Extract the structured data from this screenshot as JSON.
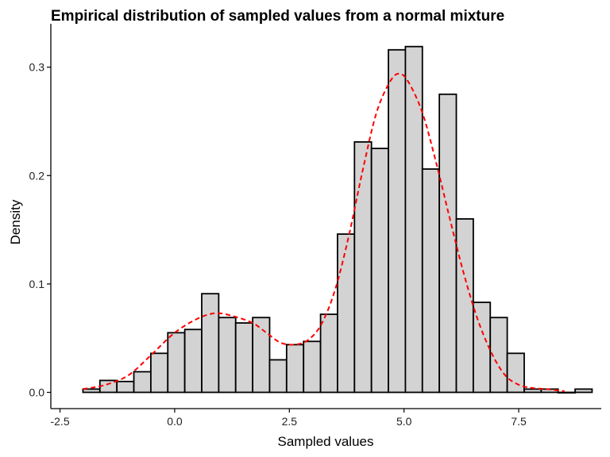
{
  "chart_data": {
    "type": "bar",
    "title": "Empirical distribution of sampled values from a normal mixture",
    "xlabel": "Sampled values",
    "ylabel": "Density",
    "xlim": [
      -2.7,
      9.3
    ],
    "ylim": [
      -0.015,
      0.34
    ],
    "x_ticks": [
      {
        "value": -2.5,
        "label": "-2.5"
      },
      {
        "value": 0.0,
        "label": "0.0"
      },
      {
        "value": 2.5,
        "label": "2.5"
      },
      {
        "value": 5.0,
        "label": "5.0"
      },
      {
        "value": 7.5,
        "label": "7.5"
      }
    ],
    "y_ticks": [
      {
        "value": 0.0,
        "label": "0.0"
      },
      {
        "value": 0.1,
        "label": "0.1"
      },
      {
        "value": 0.2,
        "label": "0.2"
      },
      {
        "value": 0.3,
        "label": "0.3"
      }
    ],
    "bins": [
      {
        "x0": -2.0,
        "x1": -1.63,
        "density": 0.003
      },
      {
        "x0": -1.63,
        "x1": -1.26,
        "density": 0.011
      },
      {
        "x0": -1.26,
        "x1": -0.89,
        "density": 0.01
      },
      {
        "x0": -0.89,
        "x1": -0.52,
        "density": 0.019
      },
      {
        "x0": -0.52,
        "x1": -0.15,
        "density": 0.036
      },
      {
        "x0": -0.15,
        "x1": 0.22,
        "density": 0.055
      },
      {
        "x0": 0.22,
        "x1": 0.59,
        "density": 0.058
      },
      {
        "x0": 0.59,
        "x1": 0.96,
        "density": 0.091
      },
      {
        "x0": 0.96,
        "x1": 1.33,
        "density": 0.069
      },
      {
        "x0": 1.33,
        "x1": 1.7,
        "density": 0.064
      },
      {
        "x0": 1.7,
        "x1": 2.07,
        "density": 0.069
      },
      {
        "x0": 2.07,
        "x1": 2.44,
        "density": 0.03
      },
      {
        "x0": 2.44,
        "x1": 2.81,
        "density": 0.044
      },
      {
        "x0": 2.81,
        "x1": 3.18,
        "density": 0.047
      },
      {
        "x0": 3.18,
        "x1": 3.55,
        "density": 0.072
      },
      {
        "x0": 3.55,
        "x1": 3.92,
        "density": 0.146
      },
      {
        "x0": 3.92,
        "x1": 4.29,
        "density": 0.231
      },
      {
        "x0": 4.29,
        "x1": 4.66,
        "density": 0.225
      },
      {
        "x0": 4.66,
        "x1": 5.03,
        "density": 0.316
      },
      {
        "x0": 5.03,
        "x1": 5.4,
        "density": 0.319
      },
      {
        "x0": 5.4,
        "x1": 5.77,
        "density": 0.206
      },
      {
        "x0": 5.77,
        "x1": 6.14,
        "density": 0.275
      },
      {
        "x0": 6.14,
        "x1": 6.51,
        "density": 0.16
      },
      {
        "x0": 6.51,
        "x1": 6.88,
        "density": 0.083
      },
      {
        "x0": 6.88,
        "x1": 7.25,
        "density": 0.069
      },
      {
        "x0": 7.25,
        "x1": 7.62,
        "density": 0.036
      },
      {
        "x0": 7.62,
        "x1": 7.99,
        "density": 0.003
      },
      {
        "x0": 7.99,
        "x1": 8.36,
        "density": 0.003
      },
      {
        "x0": 8.36,
        "x1": 8.73,
        "density": 0.0
      },
      {
        "x0": 8.73,
        "x1": 9.1,
        "density": 0.003
      }
    ],
    "density_curve": {
      "x": [
        -2.0,
        -1.5,
        -1.0,
        -0.5,
        0.0,
        0.5,
        0.9,
        1.3,
        1.7,
        2.0,
        2.3,
        2.6,
        2.9,
        3.2,
        3.5,
        3.8,
        4.1,
        4.4,
        4.7,
        4.9,
        5.1,
        5.4,
        5.7,
        6.0,
        6.3,
        6.6,
        6.9,
        7.2,
        7.5,
        7.8,
        8.1,
        8.5
      ],
      "y": [
        0.003,
        0.007,
        0.016,
        0.035,
        0.055,
        0.068,
        0.073,
        0.07,
        0.064,
        0.055,
        0.046,
        0.044,
        0.048,
        0.063,
        0.095,
        0.145,
        0.205,
        0.258,
        0.287,
        0.294,
        0.286,
        0.258,
        0.212,
        0.16,
        0.11,
        0.068,
        0.037,
        0.016,
        0.007,
        0.004,
        0.003,
        0.001
      ]
    },
    "bar_fill": "#d3d3d3",
    "bar_stroke": "#000000",
    "curve_color": "#ff0000",
    "curve_style": "dashed",
    "grid": false,
    "legend": "none"
  }
}
